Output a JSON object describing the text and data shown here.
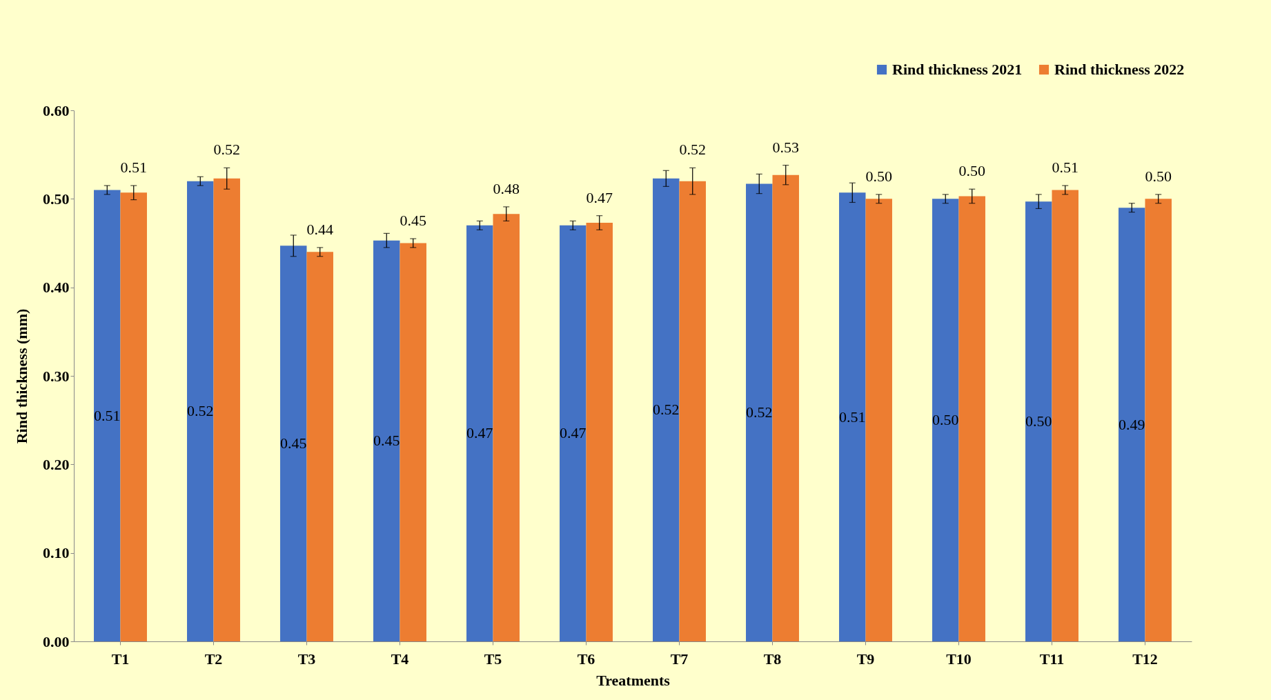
{
  "chart_data": {
    "type": "bar",
    "xlabel": "Treatments",
    "ylabel": "Rind thickness (mm)",
    "categories": [
      "T1",
      "T2",
      "T3",
      "T4",
      "T5",
      "T6",
      "T7",
      "T8",
      "T9",
      "T10",
      "T11",
      "T12"
    ],
    "series": [
      {
        "name": "Rind thickness 2021",
        "color": "#4472c4",
        "values": [
          0.51,
          0.52,
          0.447,
          0.453,
          0.47,
          0.47,
          0.523,
          0.517,
          0.507,
          0.5,
          0.497,
          0.49
        ],
        "errors": [
          0.005,
          0.005,
          0.012,
          0.008,
          0.005,
          0.005,
          0.009,
          0.011,
          0.011,
          0.005,
          0.008,
          0.005
        ],
        "value_labels": [
          "0.51",
          "0.52",
          "0.45",
          "0.45",
          "0.47",
          "0.47",
          "0.52",
          "0.52",
          "0.51",
          "0.50",
          "0.50",
          "0.49"
        ]
      },
      {
        "name": "Rind thickness 2022",
        "color": "#ed7d31",
        "values": [
          0.507,
          0.523,
          0.44,
          0.45,
          0.483,
          0.473,
          0.52,
          0.527,
          0.5,
          0.503,
          0.51,
          0.5
        ],
        "errors": [
          0.008,
          0.012,
          0.005,
          0.005,
          0.008,
          0.008,
          0.015,
          0.011,
          0.005,
          0.008,
          0.005,
          0.005
        ],
        "value_labels": [
          "0.51",
          "0.52",
          "0.44",
          "0.45",
          "0.48",
          "0.47",
          "0.52",
          "0.53",
          "0.50",
          "0.50",
          "0.51",
          "0.50"
        ]
      }
    ],
    "ylim": [
      0,
      0.6
    ],
    "yticks": [
      {
        "value": 0,
        "label": "0.00"
      },
      {
        "value": 0.1,
        "label": "0.10"
      },
      {
        "value": 0.2,
        "label": "0.20"
      },
      {
        "value": 0.3,
        "label": "0.30"
      },
      {
        "value": 0.4,
        "label": "0.40"
      },
      {
        "value": 0.5,
        "label": "0.50"
      },
      {
        "value": 0.6,
        "label": "0.60"
      }
    ],
    "legend": "top right",
    "grid": false
  }
}
